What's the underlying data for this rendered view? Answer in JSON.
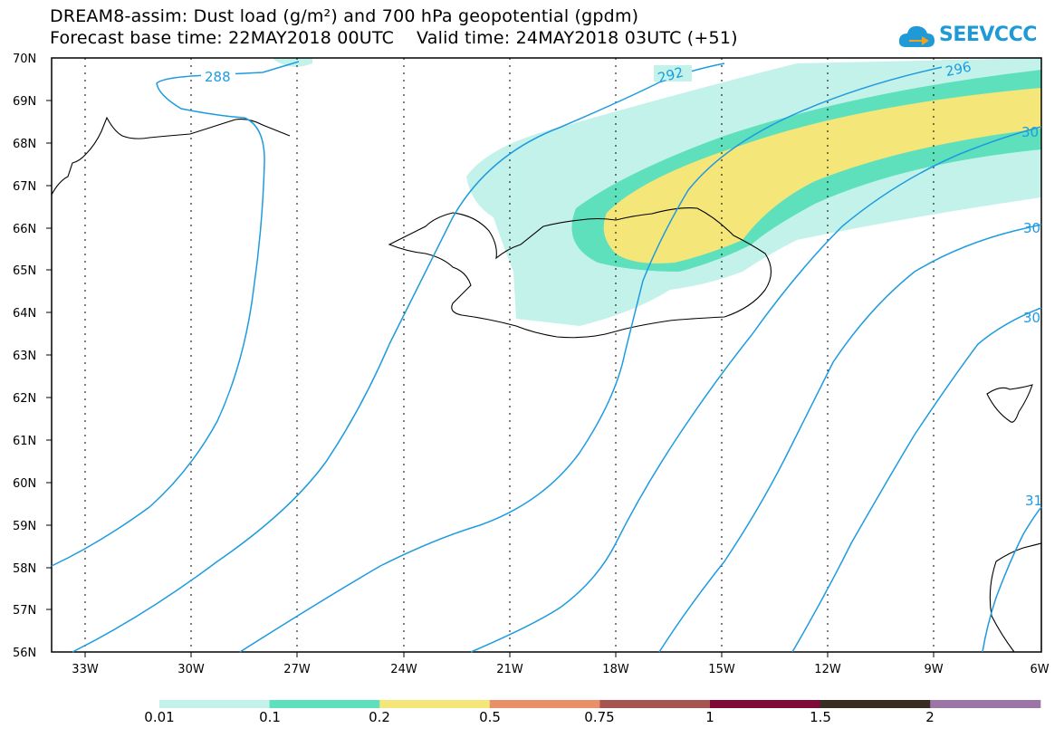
{
  "title": {
    "line1": "DREAM8-assim: Dust load (g/m²) and 700 hPa geopotential (gpdm)",
    "line2": "Forecast base time: 22MAY2018 00UTC    Valid time: 24MAY2018 03UTC (+51)"
  },
  "logo": {
    "text": "SEEVCCC",
    "icon": "cloud-arrow-icon",
    "color": "#1f9ad6"
  },
  "map": {
    "lat_labels": [
      "70N",
      "69N",
      "68N",
      "67N",
      "66N",
      "65N",
      "64N",
      "63N",
      "62N",
      "61N",
      "60N",
      "59N",
      "58N",
      "57N",
      "56N"
    ],
    "lon_labels": [
      "33W",
      "30W",
      "27W",
      "24W",
      "21W",
      "18W",
      "15W",
      "12W",
      "9W",
      "6W"
    ],
    "contour_labels": [
      "288",
      "292",
      "296",
      "30",
      "30",
      "30",
      "31"
    ],
    "contour_color": "#1e9be0",
    "coastline_color": "#000000"
  },
  "colorbar": {
    "labels": [
      "0.01",
      "0.1",
      "0.2",
      "0.5",
      "0.75",
      "1",
      "1.5",
      "2"
    ],
    "colors": [
      "#c3f2ea",
      "#5ee0bd",
      "#f5e67a",
      "#ea9068",
      "#a85450",
      "#7e0a38",
      "#3a2c20",
      "#9b75a6"
    ]
  }
}
